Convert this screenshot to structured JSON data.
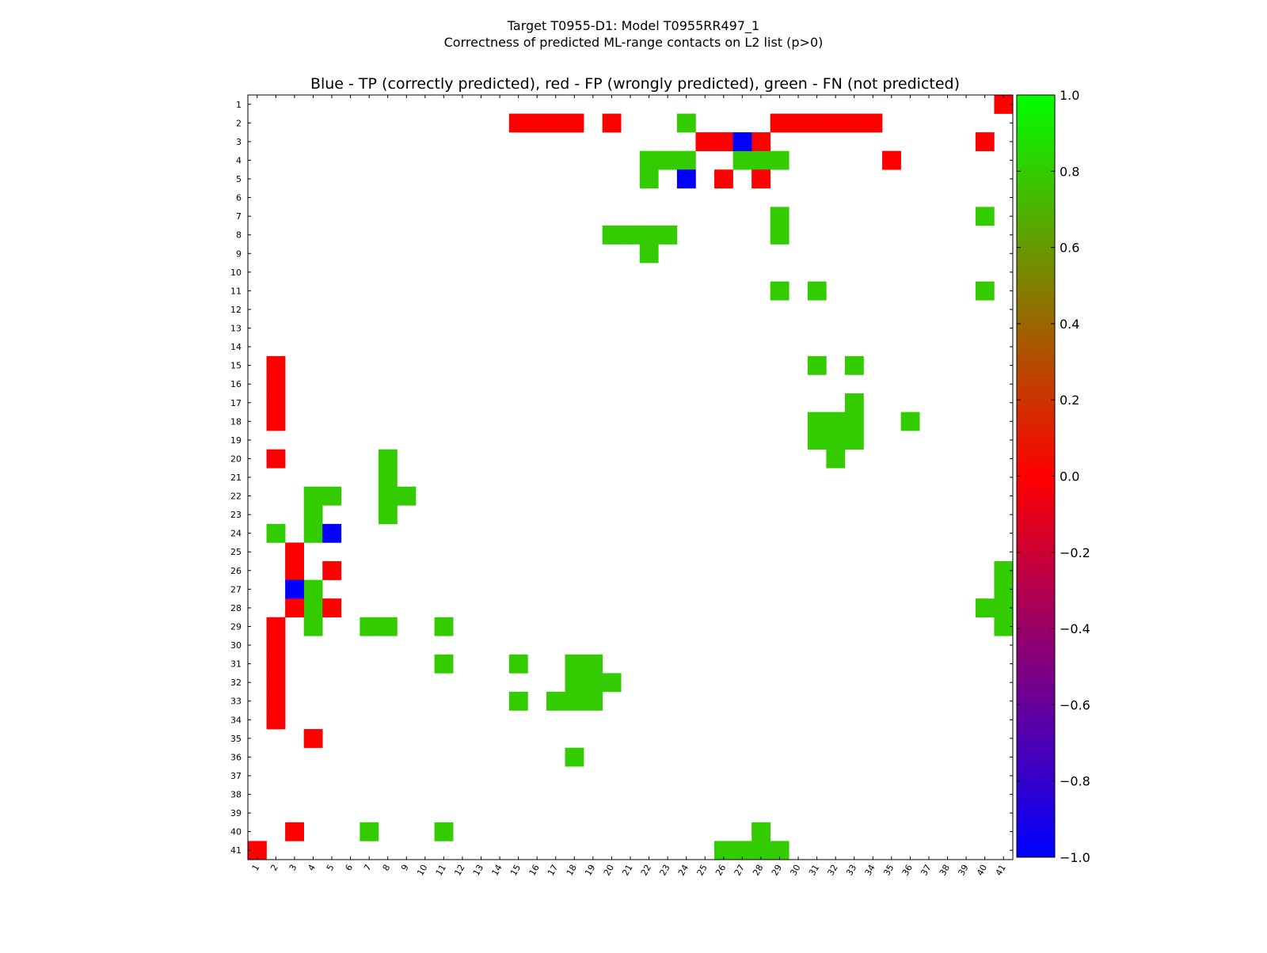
{
  "figure": {
    "suptitle_line1": "Target T0955-D1: Model T0955RR497_1",
    "suptitle_line2": "Correctness of predicted ML-range contacts on L2 list (p>0)"
  },
  "chart_data": {
    "type": "heatmap",
    "title": "Blue - TP (correctly predicted), red - FP (wrongly predicted), green - FN (not predicted)",
    "xlabel": "",
    "ylabel": "",
    "grid": false,
    "x_tick_labels": [
      "1",
      "2",
      "3",
      "4",
      "5",
      "6",
      "7",
      "8",
      "9",
      "10",
      "11",
      "12",
      "13",
      "14",
      "15",
      "16",
      "17",
      "18",
      "19",
      "20",
      "21",
      "22",
      "23",
      "24",
      "25",
      "26",
      "27",
      "28",
      "29",
      "30",
      "31",
      "32",
      "33",
      "34",
      "35",
      "36",
      "37",
      "38",
      "39",
      "40",
      "41"
    ],
    "y_tick_labels": [
      "1",
      "2",
      "3",
      "4",
      "5",
      "6",
      "7",
      "8",
      "9",
      "10",
      "11",
      "12",
      "13",
      "14",
      "15",
      "16",
      "17",
      "18",
      "19",
      "20",
      "21",
      "22",
      "23",
      "24",
      "25",
      "26",
      "27",
      "28",
      "29",
      "30",
      "31",
      "32",
      "33",
      "34",
      "35",
      "36",
      "37",
      "38",
      "39",
      "40",
      "41"
    ],
    "n": 41,
    "value_legend": {
      "TP": -1.0,
      "FP": 0.0,
      "FN": 0.8
    },
    "colors": {
      "TP": "#0000ff",
      "FP": "#ff0000",
      "FN": "#33cc00"
    },
    "cells": {
      "TP": [
        [
          3,
          27
        ],
        [
          5,
          24
        ],
        [
          24,
          5
        ],
        [
          27,
          3
        ]
      ],
      "FP": [
        [
          1,
          41
        ],
        [
          2,
          15
        ],
        [
          2,
          16
        ],
        [
          2,
          17
        ],
        [
          2,
          18
        ],
        [
          2,
          20
        ],
        [
          2,
          29
        ],
        [
          2,
          30
        ],
        [
          2,
          31
        ],
        [
          2,
          32
        ],
        [
          2,
          33
        ],
        [
          2,
          34
        ],
        [
          3,
          25
        ],
        [
          3,
          26
        ],
        [
          3,
          28
        ],
        [
          3,
          40
        ],
        [
          4,
          35
        ],
        [
          5,
          26
        ],
        [
          5,
          28
        ],
        [
          15,
          2
        ],
        [
          16,
          2
        ],
        [
          17,
          2
        ],
        [
          18,
          2
        ],
        [
          20,
          2
        ],
        [
          25,
          3
        ],
        [
          26,
          3
        ],
        [
          26,
          5
        ],
        [
          28,
          3
        ],
        [
          28,
          5
        ],
        [
          29,
          2
        ],
        [
          30,
          2
        ],
        [
          31,
          2
        ],
        [
          32,
          2
        ],
        [
          33,
          2
        ],
        [
          34,
          2
        ],
        [
          35,
          4
        ],
        [
          40,
          3
        ],
        [
          41,
          1
        ]
      ],
      "FN": [
        [
          2,
          24
        ],
        [
          4,
          22
        ],
        [
          4,
          23
        ],
        [
          4,
          24
        ],
        [
          4,
          27
        ],
        [
          4,
          28
        ],
        [
          4,
          29
        ],
        [
          5,
          22
        ],
        [
          7,
          29
        ],
        [
          7,
          40
        ],
        [
          8,
          20
        ],
        [
          8,
          21
        ],
        [
          8,
          22
        ],
        [
          8,
          23
        ],
        [
          8,
          29
        ],
        [
          9,
          22
        ],
        [
          11,
          29
        ],
        [
          11,
          31
        ],
        [
          11,
          40
        ],
        [
          15,
          31
        ],
        [
          15,
          33
        ],
        [
          17,
          33
        ],
        [
          18,
          31
        ],
        [
          18,
          32
        ],
        [
          18,
          33
        ],
        [
          18,
          36
        ],
        [
          19,
          31
        ],
        [
          19,
          32
        ],
        [
          19,
          33
        ],
        [
          20,
          32
        ],
        [
          20,
          8
        ],
        [
          21,
          8
        ],
        [
          22,
          4
        ],
        [
          22,
          5
        ],
        [
          22,
          8
        ],
        [
          22,
          9
        ],
        [
          23,
          4
        ],
        [
          23,
          8
        ],
        [
          24,
          2
        ],
        [
          24,
          4
        ],
        [
          26,
          41
        ],
        [
          27,
          4
        ],
        [
          27,
          41
        ],
        [
          28,
          4
        ],
        [
          28,
          40
        ],
        [
          28,
          41
        ],
        [
          29,
          4
        ],
        [
          29,
          7
        ],
        [
          29,
          8
        ],
        [
          29,
          11
        ],
        [
          29,
          41
        ],
        [
          31,
          11
        ],
        [
          31,
          15
        ],
        [
          31,
          18
        ],
        [
          31,
          19
        ],
        [
          32,
          18
        ],
        [
          32,
          19
        ],
        [
          32,
          20
        ],
        [
          33,
          15
        ],
        [
          33,
          17
        ],
        [
          33,
          18
        ],
        [
          33,
          19
        ],
        [
          36,
          18
        ],
        [
          40,
          7
        ],
        [
          40,
          11
        ],
        [
          40,
          28
        ],
        [
          41,
          26
        ],
        [
          41,
          27
        ],
        [
          41,
          28
        ],
        [
          41,
          29
        ]
      ]
    },
    "colorbar": {
      "range": [
        -1.0,
        1.0
      ],
      "stops": [
        "#0000ff",
        "#800080",
        "#ff0000",
        "#00ff00"
      ],
      "stop_values": [
        -1.0,
        -0.5,
        0.0,
        1.0
      ],
      "tick_labels": [
        "1.0",
        "0.8",
        "0.6",
        "0.4",
        "0.2",
        "0.0",
        "−0.2",
        "−0.4",
        "−0.6",
        "−0.8",
        "−1.0"
      ]
    }
  }
}
